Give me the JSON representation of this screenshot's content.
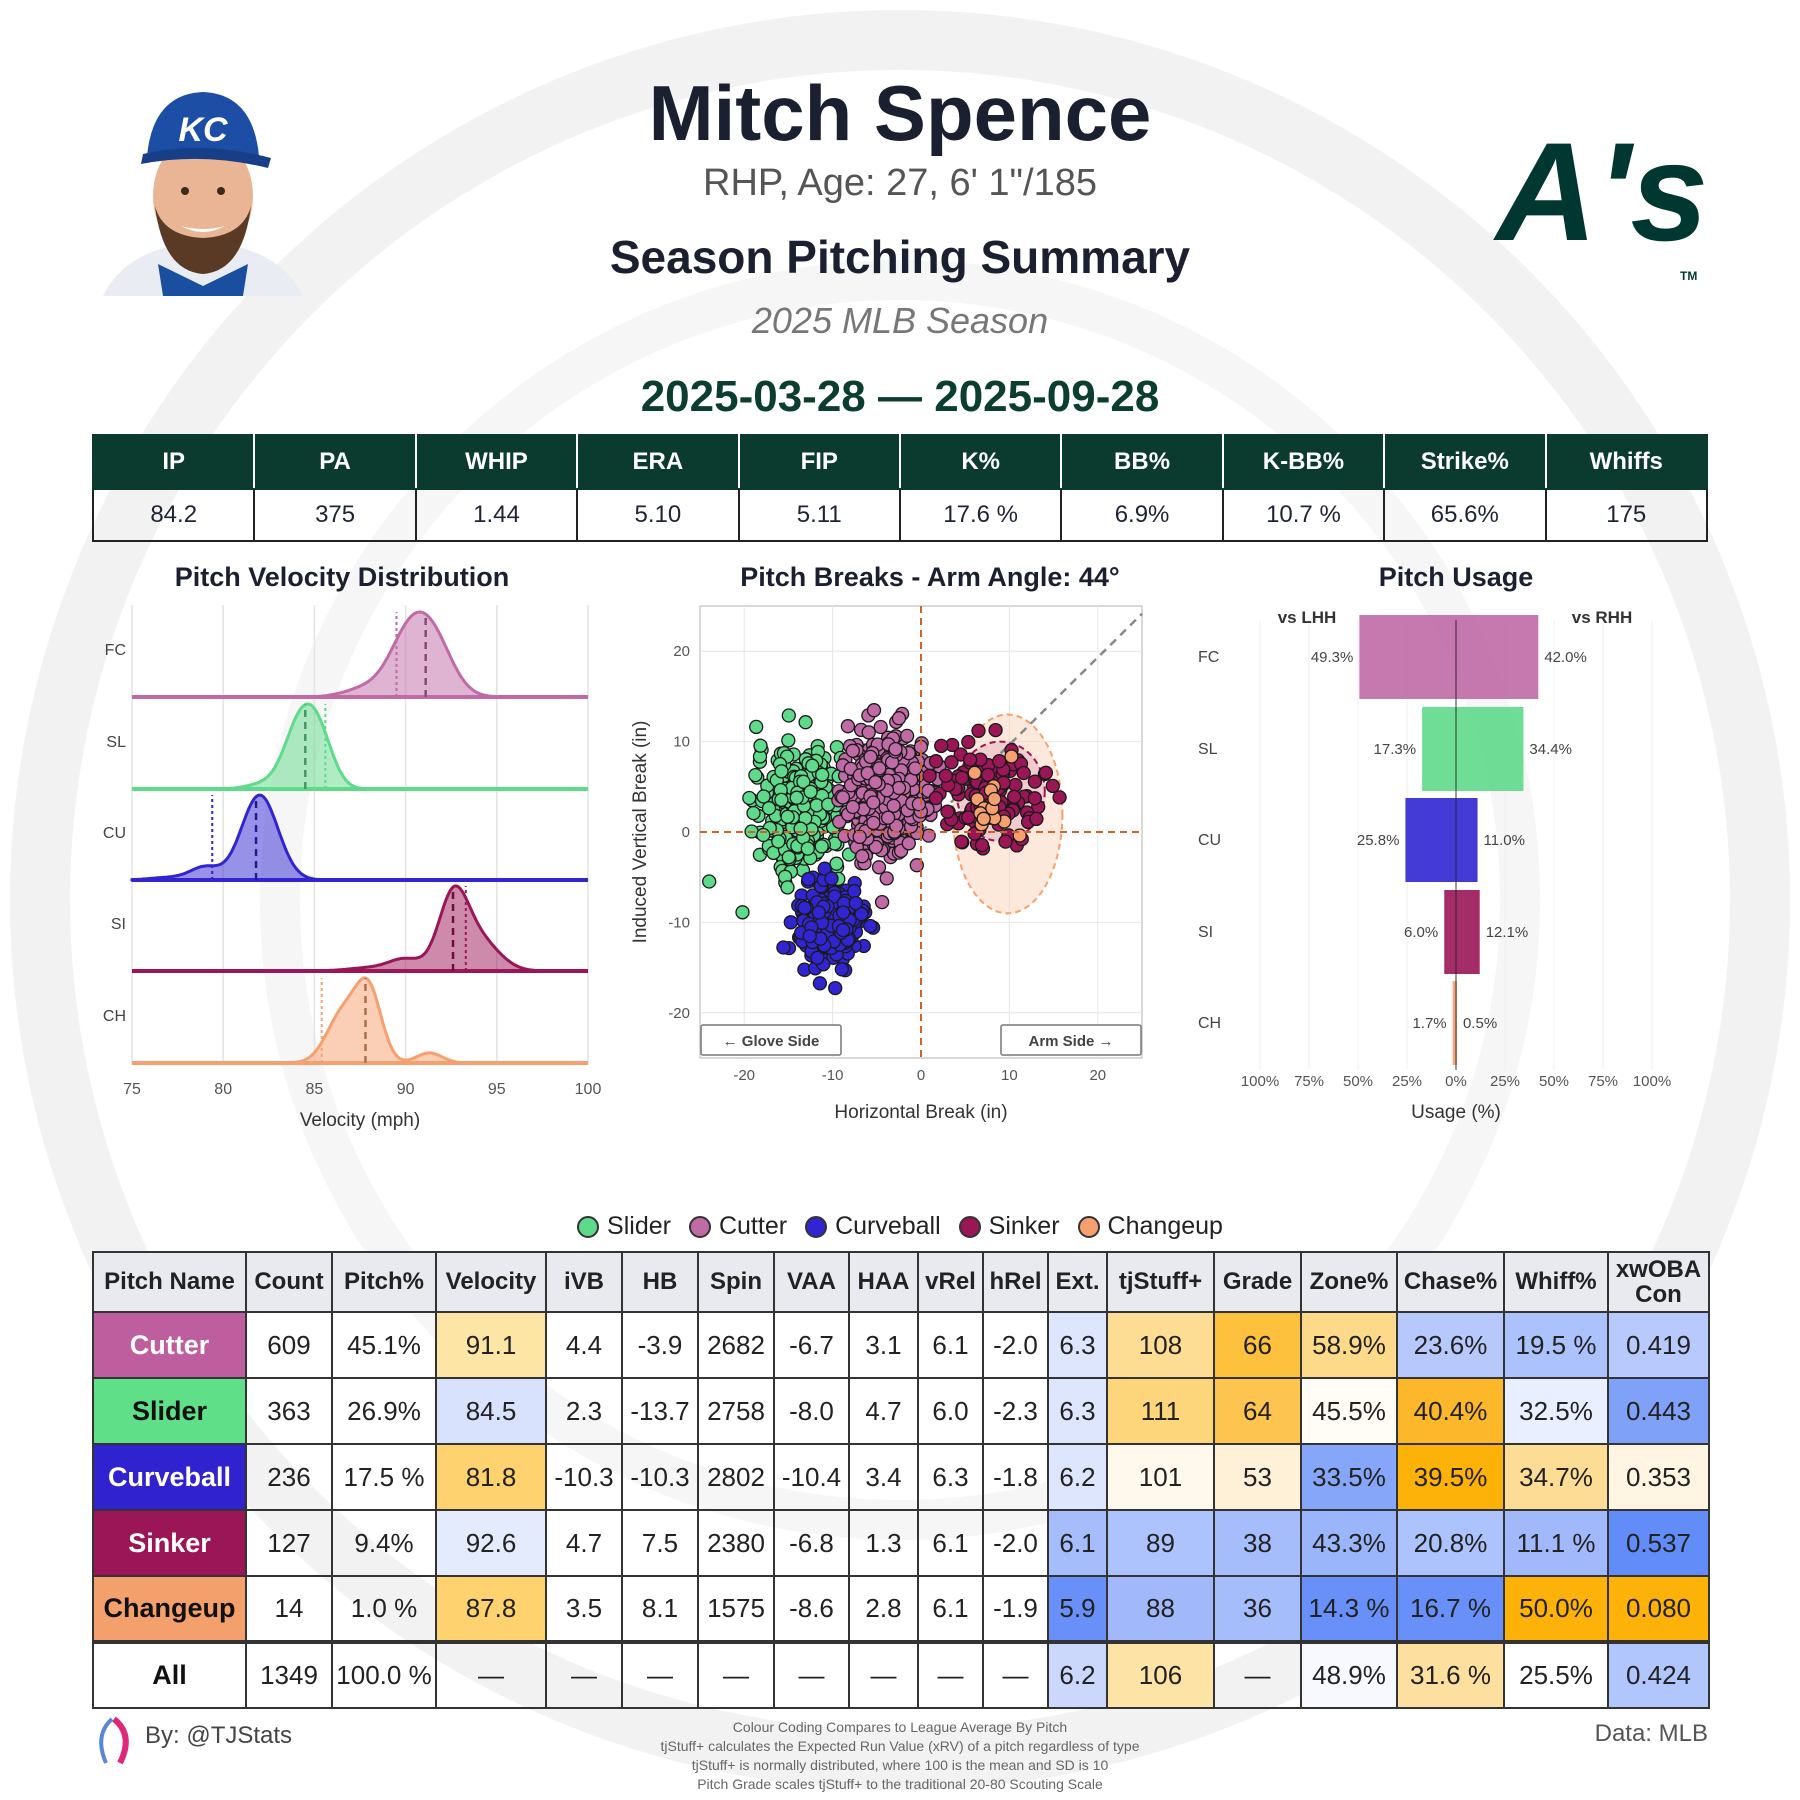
{
  "header": {
    "name": "Mitch Spence",
    "bio": "RHP, Age: 27, 6' 1\"/185",
    "report_title": "Season Pitching Summary",
    "season": "2025 MLB Season",
    "date_range": "2025-03-28 — 2025-09-28",
    "team_logo_text": "A's",
    "cap_logo_text": "KC",
    "team_color": "#003831"
  },
  "season_stats": {
    "headers": [
      "IP",
      "PA",
      "WHIP",
      "ERA",
      "FIP",
      "K%",
      "BB%",
      "K-BB%",
      "Strike%",
      "Whiffs"
    ],
    "values": [
      "84.2",
      "375",
      "1.44",
      "5.10",
      "5.11",
      "17.6 %",
      "6.9%",
      "10.7 %",
      "65.6%",
      "175"
    ]
  },
  "pitch_colors": {
    "FC": "#c06aa6",
    "SL": "#5fd98a",
    "CU": "#3025d0",
    "SI": "#9b1657",
    "CH": "#f5a06e"
  },
  "chart_data": [
    {
      "type": "area",
      "title": "Pitch Velocity Distribution",
      "xlabel": "Velocity (mph)",
      "xlim": [
        75,
        100
      ],
      "xticks": [
        "75",
        "80",
        "85",
        "90",
        "95",
        "100"
      ],
      "categories": [
        "FC",
        "SL",
        "CU",
        "SI",
        "CH"
      ],
      "pitcher_avg_velocity": [
        91.1,
        84.5,
        81.8,
        92.6,
        87.8
      ],
      "league_avg_velocity": [
        89.5,
        85.6,
        79.4,
        93.3,
        85.4
      ],
      "grid": true
    },
    {
      "type": "scatter",
      "title": "Pitch Breaks - Arm Angle: 44°",
      "arm_angle_deg": 44,
      "xlabel": "Horizontal Break (in)",
      "ylabel": "Induced Vertical Break (in)",
      "xlim": [
        -25,
        25
      ],
      "ylim": [
        -25,
        25
      ],
      "xticks": [
        "-20",
        "-10",
        "0",
        "10",
        "20"
      ],
      "yticks": [
        "20",
        "10",
        "0",
        "-10",
        "-20"
      ],
      "glove_side_label": "← Glove Side",
      "arm_side_label": "Arm Side →",
      "series": [
        {
          "name": "Slider",
          "code": "SL",
          "count": 363,
          "hb": -13.7,
          "ivb": 2.3
        },
        {
          "name": "Cutter",
          "code": "FC",
          "count": 609,
          "hb": -3.9,
          "ivb": 4.4
        },
        {
          "name": "Curveball",
          "code": "CU",
          "count": 236,
          "hb": -10.3,
          "ivb": -10.3
        },
        {
          "name": "Sinker",
          "code": "SI",
          "count": 127,
          "hb": 7.5,
          "ivb": 4.7
        },
        {
          "name": "Changeup",
          "code": "CH",
          "count": 14,
          "hb": 8.1,
          "ivb": 3.5
        }
      ],
      "grid": true
    },
    {
      "type": "bar",
      "title": "Pitch Usage",
      "left_label": "vs LHH",
      "right_label": "vs RHH",
      "xlabel": "Usage (%)",
      "xticks": [
        "100%",
        "75%",
        "50%",
        "25%",
        "0%",
        "25%",
        "50%",
        "75%",
        "100%"
      ],
      "categories": [
        "FC",
        "SL",
        "CU",
        "SI",
        "CH"
      ],
      "series": [
        {
          "name": "vs LHH",
          "values": [
            49.3,
            17.3,
            25.8,
            6.0,
            1.7
          ],
          "labels": [
            "49.3%",
            "17.3%",
            "25.8%",
            "6.0%",
            "1.7%"
          ]
        },
        {
          "name": "vs RHH",
          "values": [
            42.0,
            34.4,
            11.0,
            12.1,
            0.5
          ],
          "labels": [
            "42.0%",
            "34.4%",
            "11.0%",
            "12.1%",
            "0.5%"
          ]
        }
      ]
    }
  ],
  "legend": [
    {
      "label": "Slider",
      "code": "SL"
    },
    {
      "label": "Cutter",
      "code": "FC"
    },
    {
      "label": "Curveball",
      "code": "CU"
    },
    {
      "label": "Sinker",
      "code": "SI"
    },
    {
      "label": "Changeup",
      "code": "CH"
    }
  ],
  "pitch_table": {
    "headers": [
      "Pitch Name",
      "Count",
      "Pitch%",
      "Velocity",
      "iVB",
      "HB",
      "Spin",
      "VAA",
      "HAA",
      "vRel",
      "hRel",
      "Ext.",
      "tjStuff+",
      "Grade",
      "Zone%",
      "Chase%",
      "Whiff%",
      "xwOBA Con"
    ],
    "rows": [
      {
        "name": "Cutter",
        "name_bg": "#bf5e9e",
        "name_fg": "#ffffff",
        "cells": [
          "609",
          "45.1%",
          "91.1",
          "4.4",
          "-3.9",
          "2682",
          "-6.7",
          "3.1",
          "6.1",
          "-2.0",
          "6.3",
          "108",
          "66",
          "58.9%",
          "23.6%",
          "19.5 %",
          "0.419"
        ],
        "bg": [
          null,
          null,
          "#fde5a6",
          null,
          null,
          null,
          null,
          null,
          null,
          null,
          "#dde6fc",
          "#fddc93",
          "#fdc13e",
          "#fdd98a",
          "#b7c9fc",
          "#abc2fd",
          "#b8cafd"
        ]
      },
      {
        "name": "Slider",
        "name_bg": "#5fdf88",
        "name_fg": "#111111",
        "cells": [
          "363",
          "26.9%",
          "84.5",
          "2.3",
          "-13.7",
          "2758",
          "-8.0",
          "4.7",
          "6.0",
          "-2.3",
          "6.3",
          "111",
          "64",
          "45.5%",
          "40.4%",
          "32.5%",
          "0.443"
        ],
        "bg": [
          null,
          null,
          "#d8e2fd",
          null,
          null,
          null,
          null,
          null,
          null,
          null,
          "#dde6fc",
          "#fdd57a",
          "#fdc54f",
          "#fffdf5",
          "#fdb72a",
          "#e9effe",
          "#7fa1f7"
        ]
      },
      {
        "name": "Curveball",
        "name_bg": "#3022cf",
        "name_fg": "#ffffff",
        "cells": [
          "236",
          "17.5 %",
          "81.8",
          "-10.3",
          "-10.3",
          "2802",
          "-10.4",
          "3.4",
          "6.3",
          "-1.8",
          "6.2",
          "101",
          "53",
          "33.5%",
          "39.5%",
          "34.7%",
          "0.353"
        ],
        "bg": [
          null,
          null,
          "#fdd26f",
          null,
          null,
          null,
          null,
          null,
          null,
          null,
          "#dde6fc",
          "#fff8ec",
          "#fff0d8",
          "#86a6f9",
          "#fdb20a",
          "#fddc96",
          "#fff5e2"
        ]
      },
      {
        "name": "Sinker",
        "name_bg": "#9b1657",
        "name_fg": "#ffffff",
        "cells": [
          "127",
          "9.4%",
          "92.6",
          "4.7",
          "7.5",
          "2380",
          "-6.8",
          "1.3",
          "6.1",
          "-2.0",
          "6.1",
          "89",
          "38",
          "43.3%",
          "20.8%",
          "11.1 %",
          "0.537"
        ],
        "bg": [
          null,
          null,
          "#e4ebfd",
          null,
          null,
          null,
          null,
          null,
          null,
          null,
          "#a6bdfb",
          "#adc3fd",
          "#a6bdfb",
          "#9bb5fb",
          "#adc3fd",
          "#a1b9fb",
          "#628cf7"
        ]
      },
      {
        "name": "Changeup",
        "name_bg": "#f4a06c",
        "name_fg": "#111111",
        "cells": [
          "14",
          "1.0 %",
          "87.8",
          "3.5",
          "8.1",
          "1575",
          "-8.6",
          "2.8",
          "6.1",
          "-1.9",
          "5.9",
          "88",
          "36",
          "14.3 %",
          "16.7 %",
          "50.0%",
          "0.080"
        ],
        "bg": [
          null,
          null,
          "#fdd26f",
          null,
          null,
          null,
          null,
          null,
          null,
          null,
          "#6890f8",
          "#a1b9fb",
          "#a6bdfb",
          "#6890f8",
          "#6890f8",
          "#fdb20a",
          "#fdb20a"
        ]
      },
      {
        "name": "All",
        "name_bg": "#ffffff",
        "name_fg": "#111111",
        "cells": [
          "1349",
          "100.0 %",
          "—",
          "—",
          "—",
          "—",
          "—",
          "—",
          "—",
          "—",
          "6.2",
          "106",
          "—",
          "48.9%",
          "31.6 %",
          "25.5%",
          "0.424"
        ],
        "bg": [
          null,
          null,
          null,
          null,
          null,
          null,
          null,
          null,
          null,
          null,
          "#cbd8fc",
          "#fde3a6",
          null,
          "#f7f9fe",
          "#fddfa0",
          null,
          "#b1c6fd"
        ]
      }
    ]
  },
  "footer": {
    "byline": "By: @TJStats",
    "data_source": "Data: MLB",
    "notes": [
      "Colour Coding Compares to League Average By Pitch",
      "tjStuff+ calculates the Expected Run Value (xRV) of a pitch regardless of type",
      "tjStuff+ is normally distributed, where 100 is the mean and SD is 10",
      "Pitch Grade scales tjStuff+ to the traditional 20-80 Scouting Scale"
    ]
  }
}
